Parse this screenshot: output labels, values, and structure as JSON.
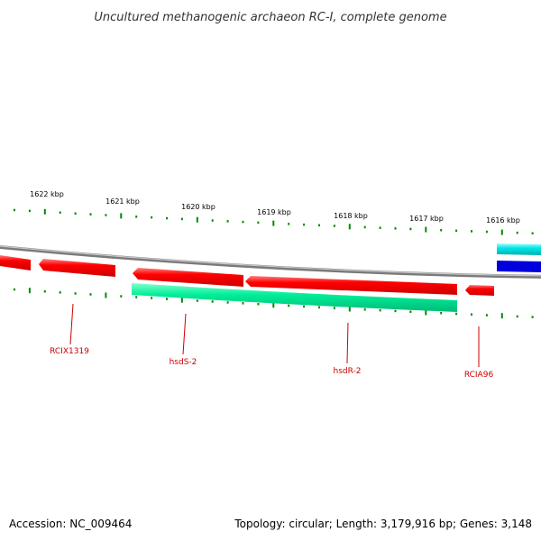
{
  "title": "Uncultured methanogenic archaeon RC-I, complete genome",
  "footer": {
    "accession": "Accession: NC_009464",
    "summary": "Topology: circular; Length: 3,179,916 bp; Genes: 3,148"
  },
  "scale_labels": [
    "1622 kbp",
    "1621 kbp",
    "1620 kbp",
    "1619 kbp",
    "1618 kbp",
    "1617 kbp",
    "1616 kbp"
  ],
  "genes": [
    {
      "name": "RCIX1319",
      "strand": "reverse",
      "color": "#ff0000"
    },
    {
      "name": "hsdS-2",
      "strand": "forward",
      "color": "#00ee99"
    },
    {
      "name": "hsdR-2",
      "strand": "reverse",
      "color": "#ff0000"
    },
    {
      "name": "RCIA96",
      "strand": "reverse",
      "color": "#ff0000"
    }
  ],
  "colors": {
    "forward_gene": "#00ee99",
    "reverse_gene": "#ff0000",
    "ticks": "#008800",
    "backbone": "#888888",
    "label_lines": "#cc0000",
    "cyan_feature": "#00e5e5",
    "blue_feature": "#0000dd"
  }
}
